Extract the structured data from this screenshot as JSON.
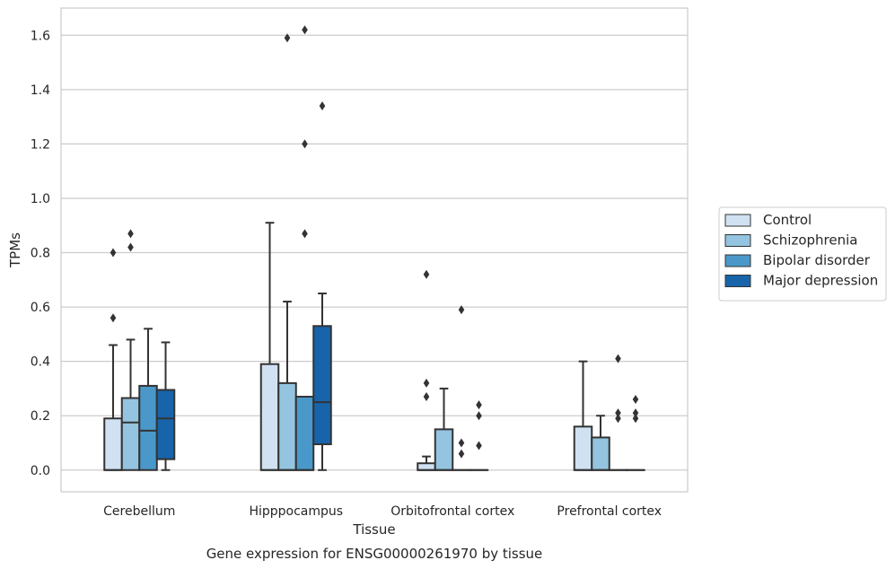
{
  "chart_data": {
    "type": "box",
    "caption": "Gene expression for ENSG00000261970 by tissue",
    "xlabel": "Tissue",
    "ylabel": "TPMs",
    "ylim": [
      -0.08,
      1.7
    ],
    "yticks": [
      0.0,
      0.2,
      0.4,
      0.6,
      0.8,
      1.0,
      1.2,
      1.4,
      1.6
    ],
    "ytick_labels": [
      "0.0",
      "0.2",
      "0.4",
      "0.6",
      "0.8",
      "1.0",
      "1.2",
      "1.4",
      "1.6"
    ],
    "grid": "horizontal",
    "legend_position": "right",
    "categories": [
      "Cerebellum",
      "Hipppocampus",
      "Orbitofrontal cortex",
      "Prefrontal cortex"
    ],
    "series": [
      {
        "name": "Control",
        "color": "#d0e1f2",
        "boxes": [
          {
            "whislo": 0.0,
            "q1": 0.0,
            "med": 0.0,
            "q3": 0.19,
            "whishi": 0.46,
            "fliers": [
              0.56,
              0.8
            ]
          },
          {
            "whislo": 0.0,
            "q1": 0.0,
            "med": 0.0,
            "q3": 0.39,
            "whishi": 0.91,
            "fliers": []
          },
          {
            "whislo": 0.0,
            "q1": 0.0,
            "med": 0.0,
            "q3": 0.025,
            "whishi": 0.05,
            "fliers": [
              0.27,
              0.32,
              0.72
            ]
          },
          {
            "whislo": 0.0,
            "q1": 0.0,
            "med": 0.0,
            "q3": 0.16,
            "whishi": 0.4,
            "fliers": []
          }
        ]
      },
      {
        "name": "Schizophrenia",
        "color": "#94c4df",
        "boxes": [
          {
            "whislo": 0.0,
            "q1": 0.0,
            "med": 0.175,
            "q3": 0.265,
            "whishi": 0.48,
            "fliers": [
              0.82,
              0.87
            ]
          },
          {
            "whislo": 0.0,
            "q1": 0.0,
            "med": 0.0,
            "q3": 0.32,
            "whishi": 0.62,
            "fliers": [
              1.59
            ]
          },
          {
            "whislo": 0.0,
            "q1": 0.0,
            "med": 0.0,
            "q3": 0.15,
            "whishi": 0.3,
            "fliers": []
          },
          {
            "whislo": 0.0,
            "q1": 0.0,
            "med": 0.0,
            "q3": 0.12,
            "whishi": 0.2,
            "fliers": []
          }
        ]
      },
      {
        "name": "Bipolar disorder",
        "color": "#4a98c9",
        "boxes": [
          {
            "whislo": 0.0,
            "q1": 0.0,
            "med": 0.145,
            "q3": 0.31,
            "whishi": 0.52,
            "fliers": []
          },
          {
            "whislo": 0.0,
            "q1": 0.0,
            "med": 0.0,
            "q3": 0.27,
            "whishi": 0.27,
            "fliers": [
              0.87,
              1.2,
              1.62
            ]
          },
          {
            "whislo": 0.0,
            "q1": 0.0,
            "med": 0.0,
            "q3": 0.0,
            "whishi": 0.0,
            "fliers": [
              0.06,
              0.1,
              0.59
            ]
          },
          {
            "whislo": 0.0,
            "q1": 0.0,
            "med": 0.0,
            "q3": 0.0,
            "whishi": 0.0,
            "fliers": [
              0.19,
              0.21,
              0.41
            ]
          }
        ]
      },
      {
        "name": "Major depression",
        "color": "#1764ab",
        "boxes": [
          {
            "whislo": 0.0,
            "q1": 0.04,
            "med": 0.19,
            "q3": 0.295,
            "whishi": 0.47,
            "fliers": []
          },
          {
            "whislo": 0.0,
            "q1": 0.095,
            "med": 0.25,
            "q3": 0.53,
            "whishi": 0.65,
            "fliers": [
              1.34
            ]
          },
          {
            "whislo": 0.0,
            "q1": 0.0,
            "med": 0.0,
            "q3": 0.0,
            "whishi": 0.0,
            "fliers": [
              0.09,
              0.2,
              0.24
            ]
          },
          {
            "whislo": 0.0,
            "q1": 0.0,
            "med": 0.0,
            "q3": 0.0,
            "whishi": 0.0,
            "fliers": [
              0.19,
              0.21,
              0.26
            ]
          }
        ]
      }
    ]
  }
}
